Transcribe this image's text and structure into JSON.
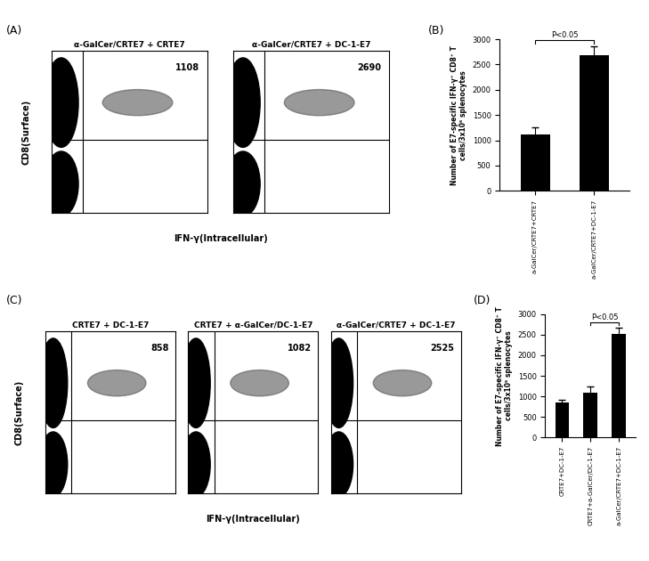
{
  "chart_data": [
    {
      "type": "flow_cytometry",
      "panel": "(A)",
      "xlabel": "IFN-γ(Intracellular)",
      "ylabel": "CD8(Surface)",
      "tick_labels": false,
      "plots": [
        {
          "title": "α-GalCer/CRTE7 + CRTE7",
          "count": 1108
        },
        {
          "title": "α-GalCer/CRTE7 + DC-1-E7",
          "count": 2690
        }
      ]
    },
    {
      "type": "bar",
      "panel": "(B)",
      "ylabel": "Number of E7-specific IFN-γ⁺ CD8⁺ T\ncells/3x10⁵ splenocytes",
      "categories": [
        "a-GalCer/CRTE7+CRTE7",
        "a-GalCer/CRTE7+DC-1-E7"
      ],
      "values": [
        1108,
        2690
      ],
      "errors": [
        150,
        170
      ],
      "color": "#000000",
      "ylim": [
        0,
        3000
      ],
      "yticks": [
        0,
        500,
        1000,
        1500,
        2000,
        2500,
        3000
      ],
      "annotations": [
        {
          "text": "P<0.05",
          "between": [
            0,
            1
          ]
        }
      ]
    },
    {
      "type": "flow_cytometry",
      "panel": "(C)",
      "xlabel": "IFN-γ(Intracellular)",
      "ylabel": "CD8(Surface)",
      "tick_labels": false,
      "plots": [
        {
          "title": "CRTE7 + DC-1-E7",
          "count": 858
        },
        {
          "title": "CRTE7 + α-GalCer/DC-1-E7",
          "count": 1082
        },
        {
          "title": "α-GalCer/CRTE7 + DC-1-E7",
          "count": 2525
        }
      ]
    },
    {
      "type": "bar",
      "panel": "(D)",
      "ylabel": "Number of E7-specific IFN-γ⁺ CD8⁺ T\ncells/3x10⁵ splenocytes",
      "categories": [
        "CRTE7+DC-1-E7",
        "CRTE7+a-GalCer/DC-1-E7",
        "a-GalCer/CRTE7+DC-1-E7"
      ],
      "values": [
        858,
        1082,
        2525
      ],
      "errors": [
        70,
        150,
        150
      ],
      "color": "#000000",
      "ylim": [
        0,
        3000
      ],
      "yticks": [
        0,
        500,
        1000,
        1500,
        2000,
        2500,
        3000
      ],
      "annotations": [
        {
          "text": "P<0.05",
          "between": [
            1,
            2
          ]
        }
      ]
    }
  ]
}
